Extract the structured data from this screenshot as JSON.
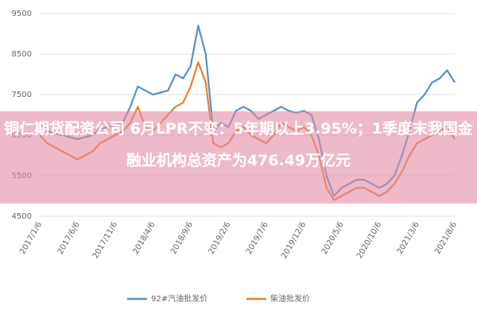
{
  "chart_data": {
    "type": "line",
    "annotation": "铜仁期货配资公司 6月LPR不变：5年期以上3.95%；1季度末我国金融业机构总资产为476.49万亿元",
    "categories": [
      "2017/1/6",
      null,
      null,
      null,
      null,
      "2017/6/6",
      null,
      null,
      null,
      null,
      "2017/11/6",
      null,
      null,
      null,
      null,
      "2018/4/6",
      null,
      null,
      null,
      null,
      "2018/9/6",
      null,
      null,
      null,
      null,
      "2019/2/6",
      null,
      null,
      null,
      null,
      "2019/7/6",
      null,
      null,
      null,
      null,
      "2019/12/6",
      null,
      null,
      null,
      null,
      "2020/5/6",
      null,
      null,
      null,
      null,
      "2020/10/6",
      null,
      null,
      null,
      null,
      "2021/3/6",
      null,
      null,
      null,
      null,
      "2021/8/6"
    ],
    "series": [
      {
        "name": "92#汽油批发价",
        "color": "#5b8fc9",
        "values": [
          6800,
          6600,
          6550,
          6500,
          6450,
          6400,
          6450,
          6500,
          6650,
          6700,
          6750,
          6800,
          7200,
          7700,
          7600,
          7500,
          7550,
          7600,
          8000,
          7900,
          8200,
          9200,
          8500,
          6600,
          6800,
          6700,
          7100,
          7200,
          7100,
          6900,
          7000,
          7100,
          7200,
          7100,
          7050,
          7100,
          7000,
          6400,
          5500,
          5000,
          5200,
          5300,
          5400,
          5400,
          5300,
          5200,
          5300,
          5500,
          6000,
          6600,
          7300,
          7500,
          7800,
          7900,
          8100,
          7800
        ]
      },
      {
        "name": "柴油批发价",
        "color": "#ed7d31",
        "values": [
          6500,
          6300,
          6200,
          6100,
          6000,
          5900,
          6000,
          6100,
          6300,
          6400,
          6500,
          6600,
          6800,
          7200,
          6700,
          6600,
          6800,
          7000,
          7200,
          7300,
          7700,
          8300,
          7800,
          6300,
          6200,
          6300,
          6600,
          6700,
          6500,
          6400,
          6300,
          6500,
          6800,
          6700,
          6600,
          6700,
          6500,
          6000,
          5200,
          4900,
          5000,
          5100,
          5200,
          5200,
          5100,
          5000,
          5100,
          5300,
          5600,
          6000,
          6300,
          6400,
          6500,
          6600,
          6700,
          6400
        ]
      }
    ],
    "ylim": [
      4500,
      9500
    ],
    "yticks": [
      4500,
      5500,
      6500,
      7500,
      8500,
      9500
    ],
    "grid": true
  }
}
